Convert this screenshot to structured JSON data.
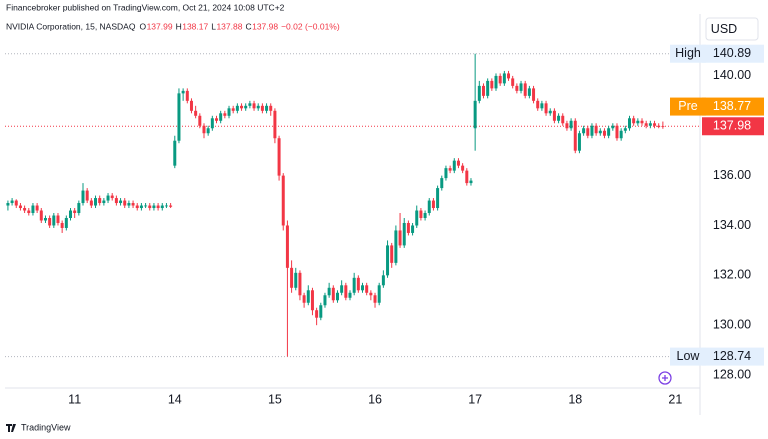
{
  "header": "Financebroker published on TradingView.com, Oct 21, 2024 10:08 UTC+2",
  "footer": "TradingView",
  "chart_data": {
    "type": "candlestick",
    "symbol": "NVIDIA Corporation, 15, NASDAQ",
    "ohlc_legend": [
      "O",
      "137.99",
      "H",
      "138.17",
      "L",
      "137.88",
      "C",
      "137.98",
      "−0.02 (−0.01%)"
    ],
    "currency": "USD",
    "up_color": "#089981",
    "down_color": "#f23645",
    "ylim": [
      127.48,
      141.24
    ],
    "yticks": [
      {
        "value": 128,
        "label": "128.00"
      },
      {
        "value": 130,
        "label": "130.00"
      },
      {
        "value": 132,
        "label": "132.00"
      },
      {
        "value": 134,
        "label": "134.00"
      },
      {
        "value": 136,
        "label": "136.00"
      },
      {
        "value": 138,
        "label": "138.00"
      },
      {
        "value": 140,
        "label": "140.00"
      }
    ],
    "xlim": [
      -0.7,
      165.9
    ],
    "xticks": [
      {
        "value": 16,
        "label": "11"
      },
      {
        "value": 40,
        "label": "14"
      },
      {
        "value": 64,
        "label": "15"
      },
      {
        "value": 88,
        "label": "16"
      },
      {
        "value": 112,
        "label": "17"
      },
      {
        "value": 136,
        "label": "18"
      },
      {
        "value": 160,
        "label": "21"
      }
    ],
    "high": {
      "label": "High",
      "value": 140.89
    },
    "low": {
      "label": "Low",
      "value": 128.74
    },
    "pre": {
      "label": "Pre",
      "value": 138.77,
      "color": "#ff9800"
    },
    "last": {
      "value": 137.98,
      "color": "#f23645"
    },
    "candles": [
      [
        134.8,
        135.0,
        134.6,
        134.9
      ],
      [
        134.9,
        135.1,
        134.8,
        135.0
      ],
      [
        135.0,
        135.05,
        134.7,
        134.8
      ],
      [
        134.8,
        134.9,
        134.6,
        134.7
      ],
      [
        134.7,
        134.8,
        134.5,
        134.6
      ],
      [
        134.6,
        134.7,
        134.4,
        134.5
      ],
      [
        134.5,
        134.9,
        134.4,
        134.8
      ],
      [
        134.8,
        134.9,
        134.5,
        134.6
      ],
      [
        134.6,
        134.7,
        134.1,
        134.2
      ],
      [
        134.2,
        134.4,
        134.1,
        134.3
      ],
      [
        134.3,
        134.4,
        133.9,
        134.0
      ],
      [
        134.0,
        134.5,
        133.9,
        134.4
      ],
      [
        134.4,
        134.5,
        134.0,
        134.1
      ],
      [
        134.1,
        134.2,
        133.7,
        133.9
      ],
      [
        133.9,
        134.4,
        133.8,
        134.3
      ],
      [
        134.3,
        134.7,
        134.2,
        134.6
      ],
      [
        134.6,
        134.7,
        134.3,
        134.5
      ],
      [
        134.5,
        135.0,
        134.4,
        134.9
      ],
      [
        134.9,
        135.7,
        134.8,
        135.4
      ],
      [
        135.4,
        135.5,
        134.9,
        135.0
      ],
      [
        135.0,
        135.1,
        134.7,
        134.8
      ],
      [
        134.8,
        135.2,
        134.7,
        135.1
      ],
      [
        135.1,
        135.2,
        134.8,
        134.9
      ],
      [
        134.9,
        135.1,
        134.8,
        135.0
      ],
      [
        135.0,
        135.3,
        134.9,
        135.2
      ],
      [
        135.2,
        135.3,
        135.0,
        135.1
      ],
      [
        135.1,
        135.2,
        134.8,
        134.9
      ],
      [
        134.9,
        135.1,
        134.8,
        135.0
      ],
      [
        135.0,
        135.1,
        134.7,
        134.8
      ],
      [
        134.8,
        135.0,
        134.7,
        134.9
      ],
      [
        134.9,
        135.0,
        134.7,
        134.8
      ],
      [
        134.8,
        134.9,
        134.6,
        134.7
      ],
      [
        134.7,
        134.9,
        134.6,
        134.8
      ],
      [
        134.8,
        134.9,
        134.7,
        134.8
      ],
      [
        134.8,
        134.9,
        134.6,
        134.7
      ],
      [
        134.7,
        134.9,
        134.6,
        134.8
      ],
      [
        134.8,
        134.9,
        134.6,
        134.7
      ],
      [
        134.7,
        134.9,
        134.6,
        134.8
      ],
      [
        134.8,
        134.9,
        134.7,
        134.8
      ],
      [
        134.8,
        134.9,
        134.7,
        134.75
      ],
      [
        136.4,
        137.6,
        136.3,
        137.4
      ],
      [
        137.4,
        139.5,
        137.3,
        139.3
      ],
      [
        139.3,
        139.5,
        139.0,
        139.4
      ],
      [
        139.4,
        139.5,
        138.9,
        139.0
      ],
      [
        139.0,
        139.1,
        138.5,
        138.6
      ],
      [
        138.6,
        138.8,
        138.3,
        138.4
      ],
      [
        138.4,
        138.5,
        137.9,
        138.0
      ],
      [
        138.0,
        138.1,
        137.5,
        137.7
      ],
      [
        137.7,
        138.0,
        137.6,
        137.9
      ],
      [
        137.9,
        138.4,
        137.8,
        138.3
      ],
      [
        138.3,
        138.4,
        138.1,
        138.2
      ],
      [
        138.2,
        138.6,
        138.1,
        138.5
      ],
      [
        138.5,
        138.6,
        138.3,
        138.4
      ],
      [
        138.4,
        138.8,
        138.3,
        138.7
      ],
      [
        138.7,
        138.8,
        138.5,
        138.6
      ],
      [
        138.6,
        138.9,
        138.5,
        138.8
      ],
      [
        138.8,
        138.9,
        138.6,
        138.7
      ],
      [
        138.7,
        138.9,
        138.6,
        138.8
      ],
      [
        138.8,
        139.0,
        138.7,
        138.9
      ],
      [
        138.9,
        139.0,
        138.6,
        138.7
      ],
      [
        138.7,
        138.9,
        138.6,
        138.8
      ],
      [
        138.8,
        138.9,
        138.5,
        138.6
      ],
      [
        138.6,
        138.9,
        138.5,
        138.8
      ],
      [
        138.8,
        138.9,
        138.4,
        138.6
      ],
      [
        138.6,
        138.7,
        137.3,
        137.5
      ],
      [
        137.5,
        137.6,
        135.8,
        136.0
      ],
      [
        136.0,
        136.1,
        133.8,
        134.0
      ],
      [
        134.0,
        134.2,
        128.74,
        132.3
      ],
      [
        132.3,
        132.6,
        131.3,
        131.5
      ],
      [
        131.5,
        132.3,
        131.4,
        132.1
      ],
      [
        132.1,
        132.2,
        131.0,
        131.2
      ],
      [
        131.2,
        131.3,
        130.7,
        130.9
      ],
      [
        130.9,
        131.6,
        130.8,
        131.4
      ],
      [
        131.4,
        131.5,
        130.4,
        130.6
      ],
      [
        130.6,
        130.7,
        130.0,
        130.3
      ],
      [
        130.3,
        130.9,
        130.2,
        130.8
      ],
      [
        130.8,
        131.3,
        130.7,
        131.2
      ],
      [
        131.2,
        131.7,
        131.1,
        131.5
      ],
      [
        131.5,
        131.6,
        130.9,
        131.0
      ],
      [
        131.0,
        131.4,
        130.9,
        131.3
      ],
      [
        131.3,
        131.8,
        131.2,
        131.6
      ],
      [
        131.6,
        131.7,
        131.0,
        131.1
      ],
      [
        131.1,
        131.4,
        131.0,
        131.3
      ],
      [
        131.3,
        132.1,
        131.2,
        131.9
      ],
      [
        131.9,
        132.0,
        131.3,
        131.4
      ],
      [
        131.4,
        131.7,
        131.3,
        131.6
      ],
      [
        131.6,
        131.7,
        131.2,
        131.3
      ],
      [
        131.3,
        131.4,
        131.0,
        131.2
      ],
      [
        131.2,
        131.3,
        130.7,
        130.9
      ],
      [
        130.9,
        131.7,
        130.8,
        131.6
      ],
      [
        131.6,
        132.2,
        131.5,
        132.0
      ],
      [
        132.0,
        133.4,
        131.9,
        133.2
      ],
      [
        133.2,
        133.3,
        132.3,
        132.5
      ],
      [
        132.5,
        134.0,
        132.4,
        133.8
      ],
      [
        133.8,
        134.5,
        133.1,
        133.2
      ],
      [
        133.2,
        134.3,
        133.1,
        134.1
      ],
      [
        134.1,
        134.2,
        133.6,
        133.7
      ],
      [
        133.7,
        134.1,
        133.6,
        134.0
      ],
      [
        134.0,
        134.8,
        133.9,
        134.6
      ],
      [
        134.6,
        134.7,
        134.2,
        134.3
      ],
      [
        134.3,
        134.6,
        134.2,
        134.5
      ],
      [
        134.5,
        135.1,
        134.4,
        135.0
      ],
      [
        135.0,
        135.1,
        134.6,
        134.7
      ],
      [
        134.7,
        135.6,
        134.6,
        135.5
      ],
      [
        135.5,
        136.0,
        135.4,
        135.9
      ],
      [
        135.9,
        136.4,
        135.8,
        136.3
      ],
      [
        136.3,
        136.4,
        136.1,
        136.2
      ],
      [
        136.2,
        136.7,
        136.1,
        136.6
      ],
      [
        136.6,
        136.7,
        136.3,
        136.4
      ],
      [
        136.4,
        136.5,
        136.1,
        136.2
      ],
      [
        136.2,
        136.3,
        135.6,
        135.7
      ],
      [
        135.7,
        135.9,
        135.6,
        135.8
      ],
      [
        137.9,
        140.89,
        137.0,
        139.0
      ],
      [
        139.0,
        139.8,
        138.9,
        139.6
      ],
      [
        139.6,
        139.7,
        139.1,
        139.2
      ],
      [
        139.2,
        139.9,
        139.1,
        139.8
      ],
      [
        139.8,
        139.9,
        139.4,
        139.5
      ],
      [
        139.5,
        140.1,
        139.4,
        140.0
      ],
      [
        140.0,
        140.1,
        139.6,
        139.7
      ],
      [
        139.7,
        140.2,
        139.6,
        140.1
      ],
      [
        140.1,
        140.2,
        139.8,
        139.9
      ],
      [
        139.9,
        140.0,
        139.5,
        139.6
      ],
      [
        139.6,
        139.7,
        139.3,
        139.4
      ],
      [
        139.4,
        139.8,
        139.3,
        139.7
      ],
      [
        139.7,
        139.8,
        139.1,
        139.2
      ],
      [
        139.2,
        139.6,
        139.1,
        139.5
      ],
      [
        139.5,
        139.6,
        138.9,
        139.0
      ],
      [
        139.0,
        139.1,
        138.6,
        138.7
      ],
      [
        138.7,
        139.0,
        138.6,
        138.9
      ],
      [
        138.9,
        139.0,
        138.4,
        138.5
      ],
      [
        138.5,
        138.7,
        138.4,
        138.6
      ],
      [
        138.6,
        138.7,
        138.1,
        138.2
      ],
      [
        138.2,
        138.5,
        138.1,
        138.4
      ],
      [
        138.4,
        138.5,
        138.0,
        138.1
      ],
      [
        138.1,
        138.2,
        137.8,
        137.9
      ],
      [
        137.9,
        138.3,
        137.8,
        138.2
      ],
      [
        138.2,
        138.3,
        136.9,
        137.0
      ],
      [
        137.0,
        137.8,
        136.9,
        137.7
      ],
      [
        137.7,
        138.0,
        137.6,
        137.9
      ],
      [
        137.9,
        138.0,
        137.5,
        137.6
      ],
      [
        137.6,
        138.1,
        137.5,
        138.0
      ],
      [
        138.0,
        138.1,
        137.6,
        137.7
      ],
      [
        137.7,
        137.9,
        137.6,
        137.8
      ],
      [
        137.8,
        137.9,
        137.5,
        137.6
      ],
      [
        137.6,
        138.0,
        137.5,
        137.9
      ],
      [
        137.9,
        138.1,
        137.8,
        138.0
      ],
      [
        138.0,
        138.1,
        137.4,
        137.5
      ],
      [
        137.5,
        137.9,
        137.4,
        137.8
      ],
      [
        137.8,
        138.0,
        137.7,
        137.9
      ],
      [
        137.9,
        138.4,
        137.8,
        138.3
      ],
      [
        138.3,
        138.4,
        138.0,
        138.1
      ],
      [
        138.1,
        138.3,
        138.0,
        138.2
      ],
      [
        138.2,
        138.3,
        138.0,
        138.1
      ],
      [
        138.1,
        138.2,
        137.9,
        138.0
      ],
      [
        138.0,
        138.2,
        137.9,
        138.1
      ],
      [
        138.1,
        138.2,
        137.9,
        138.0
      ],
      [
        138.0,
        138.1,
        137.9,
        137.95
      ],
      [
        137.99,
        138.17,
        137.88,
        137.98
      ]
    ]
  }
}
